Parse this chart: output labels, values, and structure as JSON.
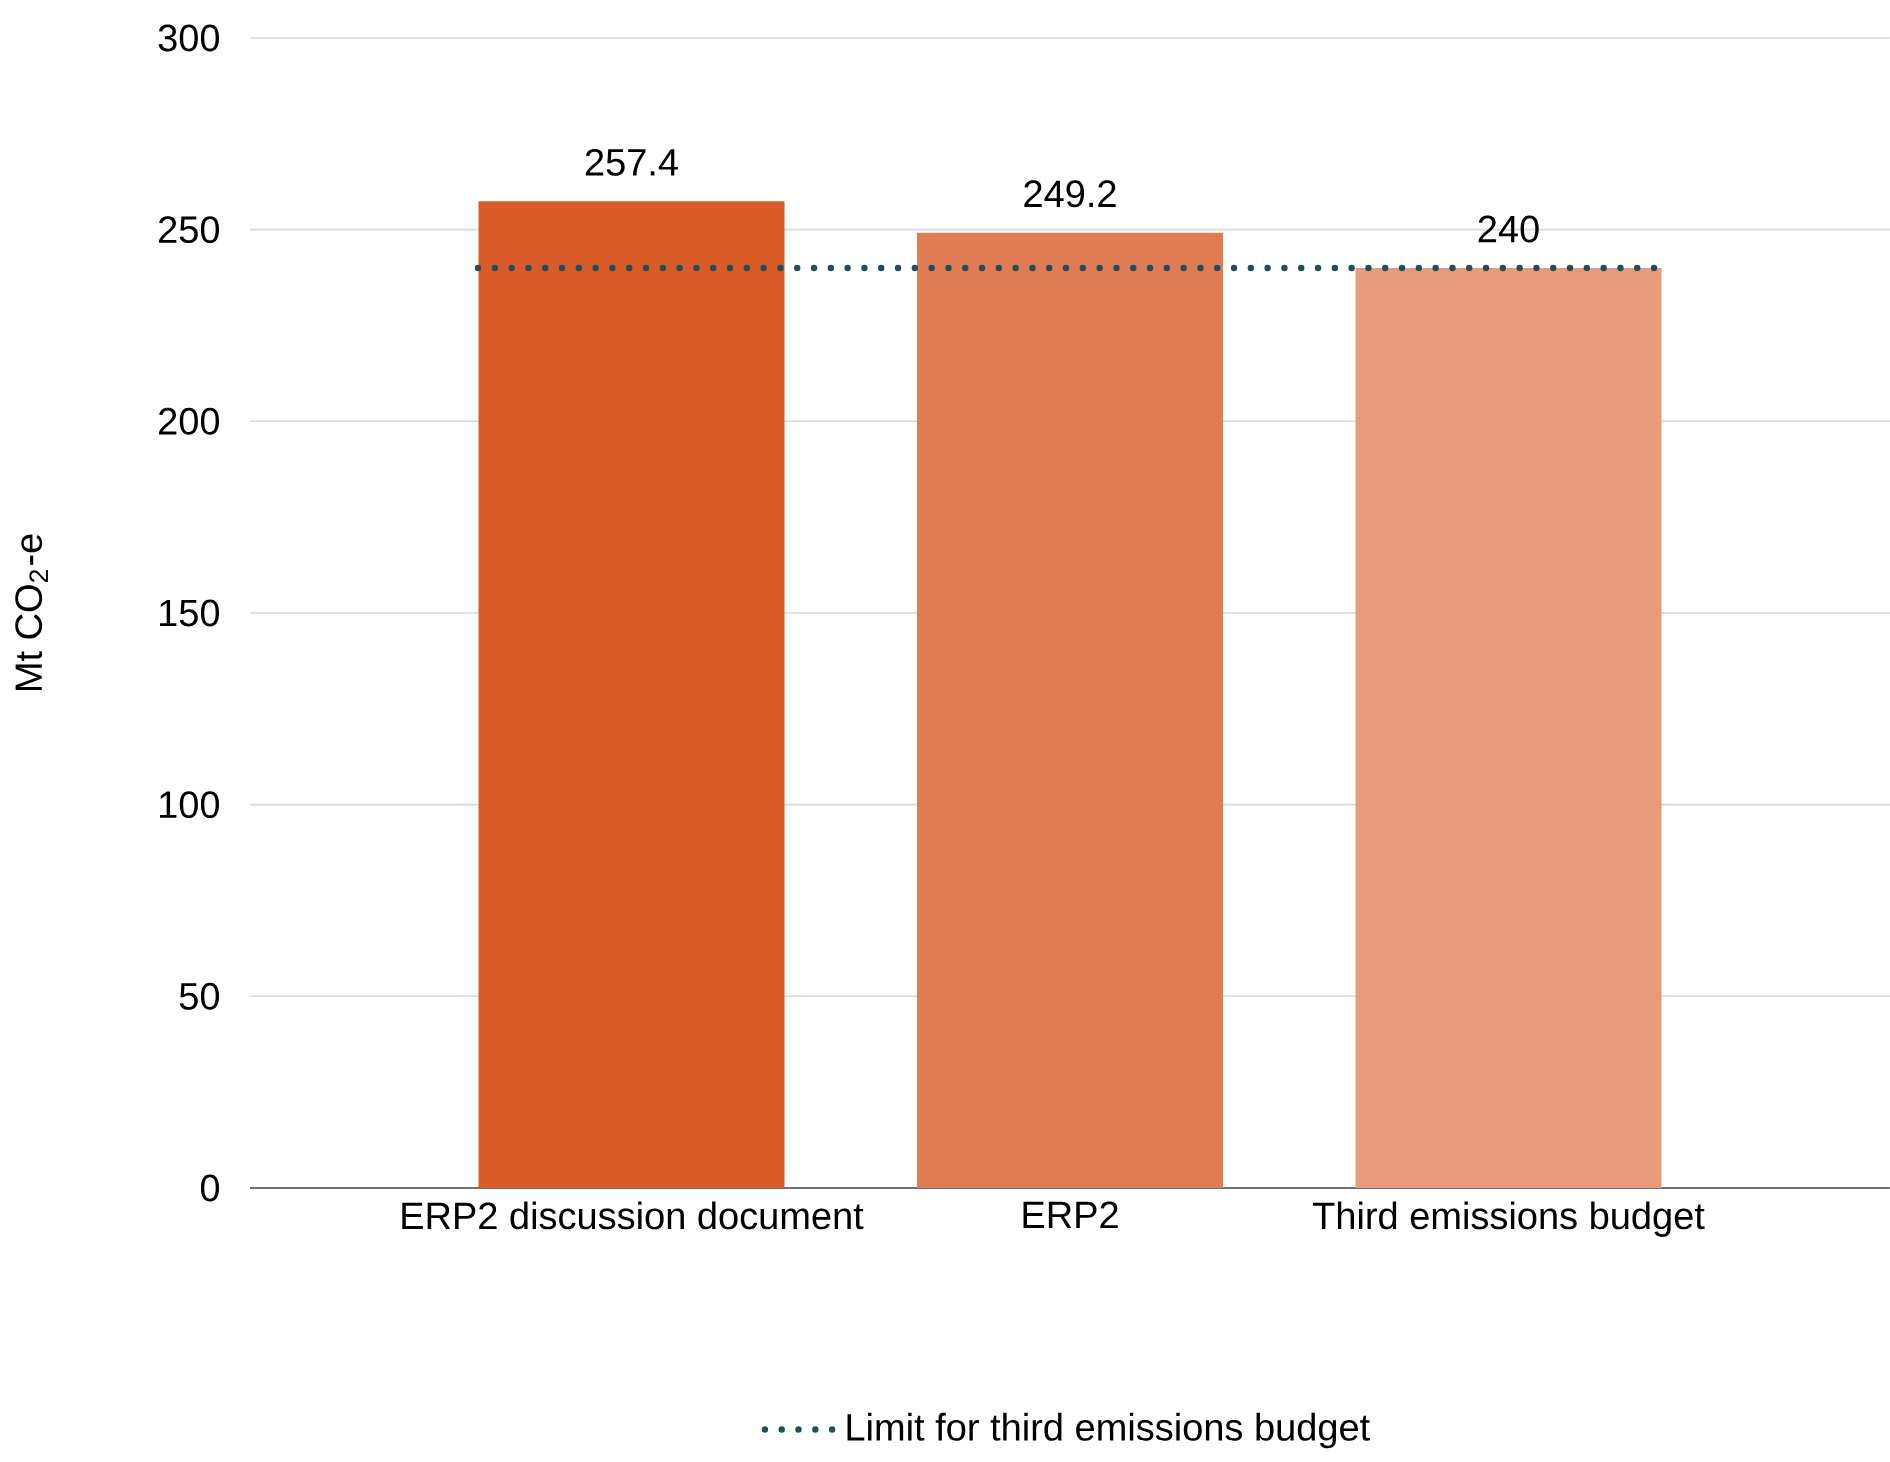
{
  "chart_data": {
    "type": "bar",
    "categories": [
      "ERP2 discussion document",
      "ERP2",
      "Third emissions budget"
    ],
    "values": [
      257.4,
      249.2,
      240
    ],
    "colors": [
      "#d95b27",
      "#e07c54",
      "#e99a7c"
    ],
    "ylabel": "Mt CO$_{2}$-e",
    "ylim": [
      0,
      300
    ],
    "yticks": [
      0,
      50,
      100,
      150,
      200,
      250,
      300
    ],
    "grid": "y",
    "data_labels": true,
    "legend": "bottom",
    "ref_lines": [
      {
        "axis": "y",
        "value": 240,
        "label": "Limit for third emissions budget",
        "color": "#1f4e5f",
        "line_style": "dotted"
      }
    ]
  }
}
